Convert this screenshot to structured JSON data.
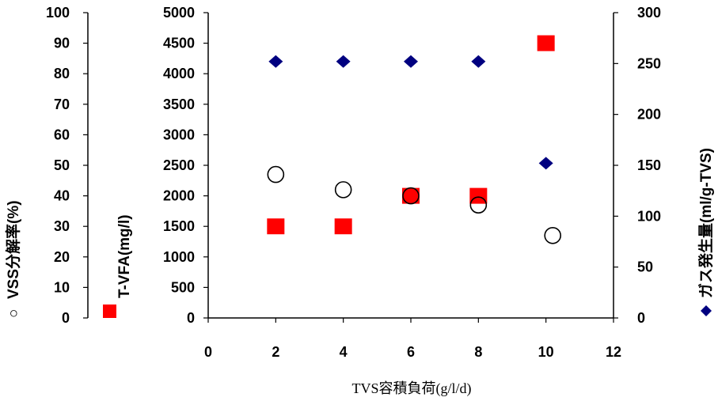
{
  "chart_data": {
    "type": "scatter",
    "xlabel": "TVS容積負荷(g/l/d)",
    "axes": {
      "x": {
        "min": 0,
        "max": 12,
        "ticks": [
          "0",
          "2",
          "4",
          "6",
          "8",
          "10",
          "12"
        ]
      },
      "y_vss": {
        "label": "VSS分解率(%)",
        "min": 0,
        "max": 100,
        "ticks": [
          "0",
          "10",
          "20",
          "30",
          "40",
          "50",
          "60",
          "70",
          "80",
          "90",
          "100"
        ]
      },
      "y_vfa": {
        "label": "T-VFA(mg/l)",
        "min": 0,
        "max": 5000,
        "ticks": [
          "0",
          "500",
          "1000",
          "1500",
          "2000",
          "2500",
          "3000",
          "3500",
          "4000",
          "4500",
          "5000"
        ]
      },
      "y_gas": {
        "label": "ガス発生量(ml/g-TVS)",
        "min": 0,
        "max": 300,
        "ticks": [
          "0",
          "50",
          "100",
          "150",
          "200",
          "250",
          "300"
        ]
      }
    },
    "series": [
      {
        "name": "VSS分解率(%)",
        "marker": "open-circle",
        "color": "#000000",
        "axis": "y_vss",
        "x": [
          2,
          4,
          6,
          8,
          10.2
        ],
        "y": [
          47,
          42,
          40,
          37,
          27
        ]
      },
      {
        "name": "T-VFA(mg/l)",
        "marker": "square",
        "color": "#ff0000",
        "axis": "y_vfa",
        "x": [
          2,
          4,
          6,
          8,
          10
        ],
        "y": [
          1500,
          1500,
          2000,
          2000,
          4500
        ]
      },
      {
        "name": "ガス発生量(ml/g-TVS)",
        "marker": "diamond",
        "color": "#000080",
        "axis": "y_gas",
        "x": [
          2,
          4,
          6,
          8,
          10
        ],
        "y": [
          252,
          252,
          252,
          252,
          152
        ]
      }
    ],
    "legend_markers": {
      "vss": "○",
      "vfa": "■",
      "gas": "◆"
    },
    "grid": false
  }
}
